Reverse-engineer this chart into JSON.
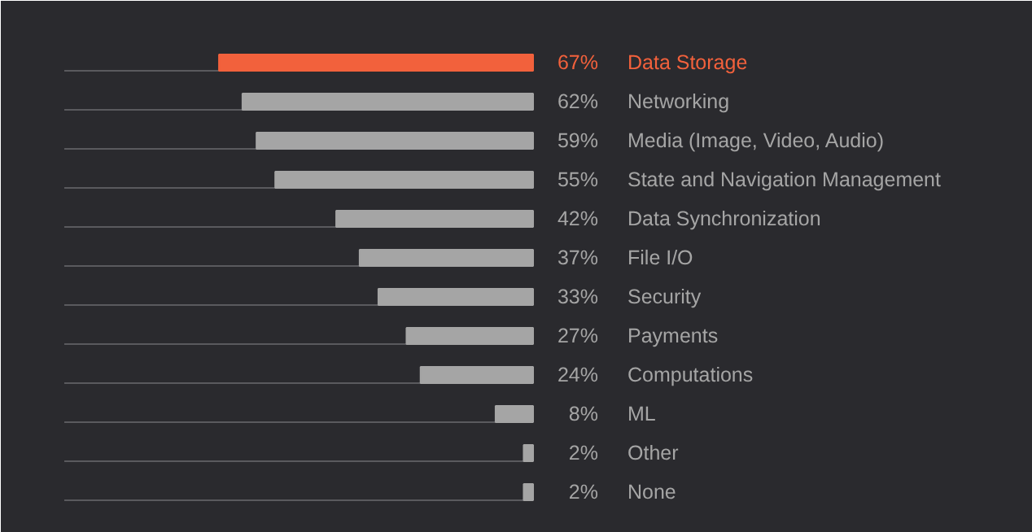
{
  "chart_data": {
    "type": "bar",
    "orientation": "horizontal",
    "categories": [
      "Data Storage",
      "Networking",
      "Media (Image, Video, Audio)",
      "State and Navigation Management",
      "Data Synchronization",
      "File I/O",
      "Security",
      "Payments",
      "Computations",
      "ML",
      "Other",
      "None"
    ],
    "values": [
      67,
      62,
      59,
      55,
      42,
      37,
      33,
      27,
      24,
      8,
      2,
      2
    ],
    "value_labels": [
      "67%",
      "62%",
      "59%",
      "55%",
      "42%",
      "37%",
      "33%",
      "27%",
      "24%",
      "8%",
      "2%",
      "2%"
    ],
    "colors": [
      "#f2613c",
      "#a5a5a5",
      "#a5a5a5",
      "#a5a5a5",
      "#a5a5a5",
      "#a5a5a5",
      "#a5a5a5",
      "#a5a5a5",
      "#a5a5a5",
      "#a5a5a5",
      "#a5a5a5",
      "#a5a5a5"
    ],
    "xlim": [
      100,
      0
    ],
    "grid": "y",
    "tick_labels": false
  }
}
